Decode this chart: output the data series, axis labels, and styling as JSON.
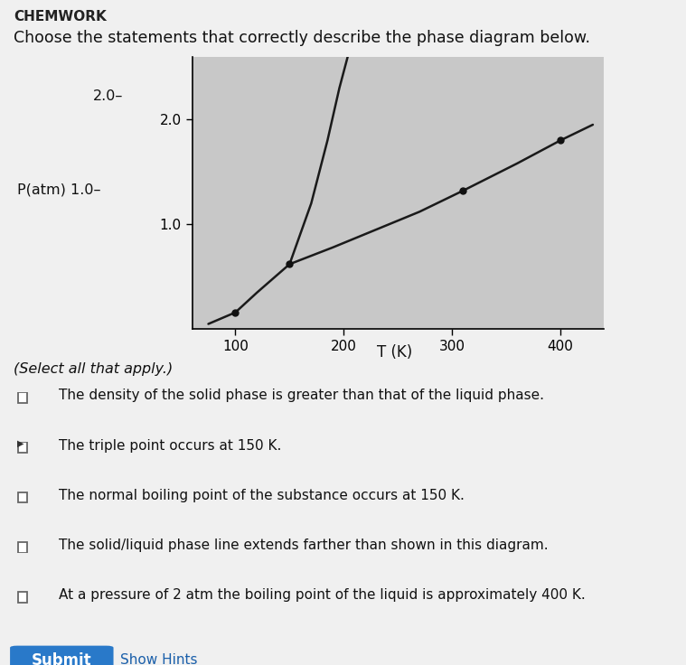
{
  "header": "CHEMWORK",
  "title": "Choose the statements that correctly describe the phase diagram below.",
  "ylabel": "P(atm)",
  "xlabel": "T (K)",
  "xlim": [
    60,
    440
  ],
  "ylim": [
    0.0,
    2.6
  ],
  "ytick_vals": [
    1.0,
    2.0
  ],
  "ytick_labels": [
    "1.0",
    "2.0"
  ],
  "xtick_vals": [
    100,
    200,
    300,
    400
  ],
  "xtick_labels": [
    "100",
    "200",
    "300",
    "400"
  ],
  "plot_bg": "#c8c8c8",
  "fig_bg": "#f0f0f0",
  "line_color": "#1a1a1a",
  "dot_color": "#111111",
  "sublimation_curve": [
    [
      75,
      0.05
    ],
    [
      100,
      0.16
    ],
    [
      120,
      0.35
    ],
    [
      150,
      0.62
    ]
  ],
  "solid_liquid_line": [
    [
      150,
      0.62
    ],
    [
      170,
      1.2
    ],
    [
      185,
      1.8
    ],
    [
      196,
      2.3
    ],
    [
      205,
      2.65
    ]
  ],
  "liquid_gas_curve": [
    [
      150,
      0.62
    ],
    [
      190,
      0.78
    ],
    [
      230,
      0.95
    ],
    [
      270,
      1.12
    ],
    [
      310,
      1.32
    ],
    [
      360,
      1.58
    ],
    [
      400,
      1.8
    ],
    [
      430,
      1.95
    ]
  ],
  "dots": [
    [
      100,
      0.16
    ],
    [
      150,
      0.62
    ],
    [
      310,
      1.32
    ],
    [
      400,
      1.8
    ]
  ],
  "select_all_text": "(Select all that apply.)",
  "options": [
    {
      "checked": false,
      "cursor": false,
      "text": "The density of the solid phase is greater than that of the liquid phase."
    },
    {
      "checked": true,
      "cursor": true,
      "text": "The triple point occurs at 150 K."
    },
    {
      "checked": false,
      "cursor": false,
      "text": "The normal boiling point of the substance occurs at 150 K."
    },
    {
      "checked": false,
      "cursor": false,
      "text": "The solid/liquid phase line extends farther than shown in this diagram."
    },
    {
      "checked": false,
      "cursor": false,
      "text": "At a pressure of 2 atm the boiling point of the liquid is approximately 400 K."
    }
  ],
  "submit_text": "Submit",
  "hints_text": "Show Hints",
  "submit_bg": "#2979c9",
  "submit_fg": "#ffffff"
}
